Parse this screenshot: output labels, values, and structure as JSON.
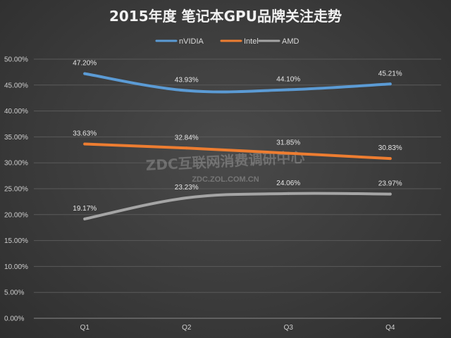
{
  "chart_data": {
    "type": "line",
    "title": "2015年度 笔记本GPU品牌关注走势",
    "categories": [
      "Q1",
      "Q2",
      "Q3",
      "Q4"
    ],
    "series": [
      {
        "name": "nVIDIA",
        "color": "#5b9bd5",
        "values": [
          47.2,
          43.93,
          44.1,
          45.21
        ],
        "labels": [
          "47.20%",
          "43.93%",
          "44.10%",
          "45.21%"
        ]
      },
      {
        "name": "Intel",
        "color": "#ed7d31",
        "values": [
          33.63,
          32.84,
          31.85,
          30.83
        ],
        "labels": [
          "33.63%",
          "32.84%",
          "31.85%",
          "30.83%"
        ]
      },
      {
        "name": "AMD",
        "color": "#a5a5a5",
        "values": [
          19.17,
          23.23,
          24.06,
          23.97
        ],
        "labels": [
          "19.17%",
          "23.23%",
          "24.06%",
          "23.97%"
        ]
      }
    ],
    "yticks": [
      "0.00%",
      "5.00%",
      "10.00%",
      "15.00%",
      "20.00%",
      "25.00%",
      "30.00%",
      "35.00%",
      "40.00%",
      "45.00%",
      "50.00%"
    ],
    "ylim": [
      0,
      50
    ],
    "xlabel": "",
    "ylabel": "",
    "grid": true,
    "legend_position": "top-center"
  },
  "watermark": {
    "line1": "ZDC互联网消费调研中心",
    "line2": "ZDC.ZOL.COM.CN"
  }
}
